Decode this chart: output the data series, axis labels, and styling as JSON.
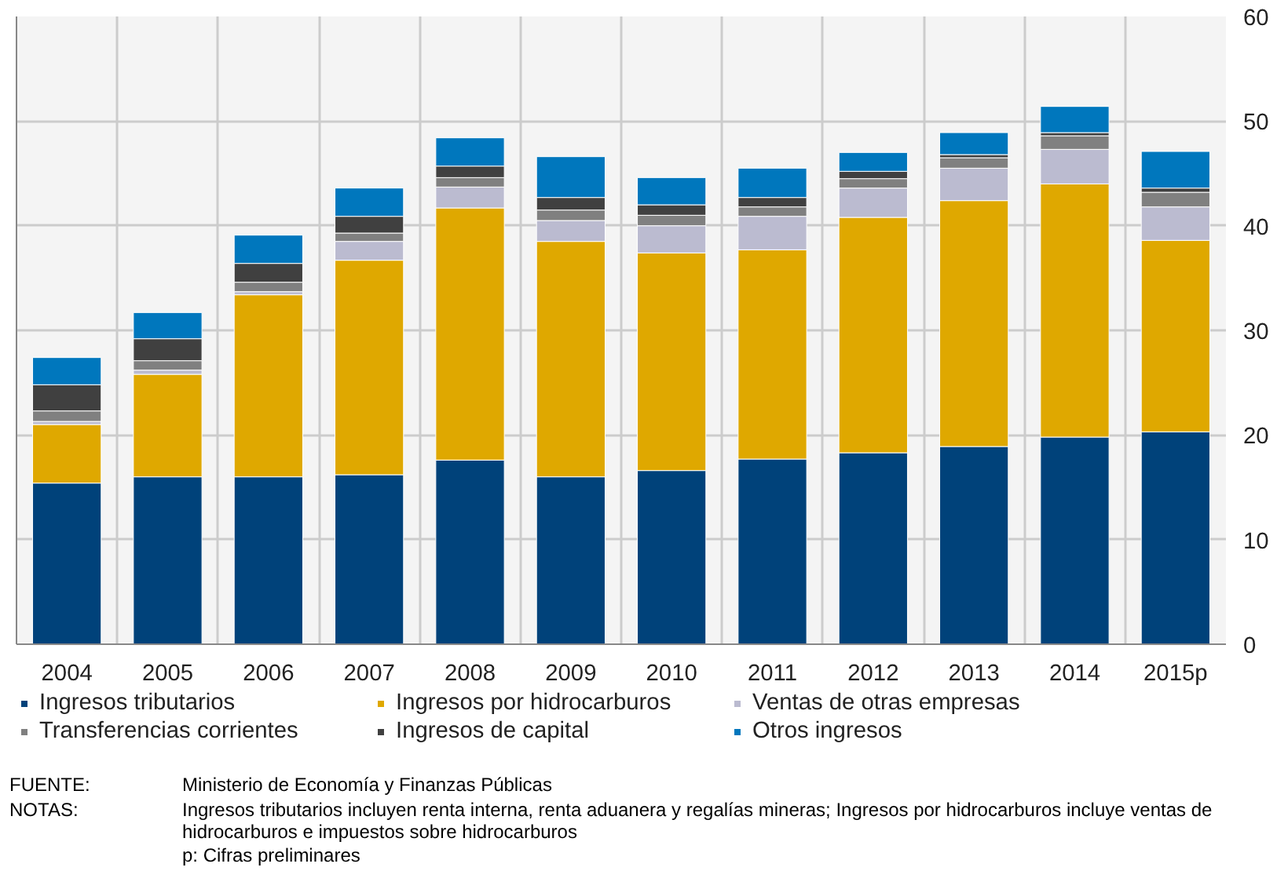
{
  "chart_data": {
    "type": "bar",
    "stacked": true,
    "categories": [
      "2004",
      "2005",
      "2006",
      "2007",
      "2008",
      "2009",
      "2010",
      "2011",
      "2012",
      "2013",
      "2014",
      "2015p"
    ],
    "series": [
      {
        "name": "Ingresos tributarios",
        "color": "#00427a",
        "values": [
          15.4,
          16.0,
          16.0,
          16.2,
          17.6,
          16.0,
          16.6,
          17.7,
          18.3,
          18.9,
          19.8,
          20.3
        ]
      },
      {
        "name": "Ingresos por hidrocarburos",
        "color": "#dfa800",
        "values": [
          5.6,
          9.8,
          17.4,
          20.5,
          24.1,
          22.5,
          20.8,
          20.0,
          22.5,
          23.5,
          24.2,
          18.3
        ]
      },
      {
        "name": "Ventas de otras empresas",
        "color": "#bbbbd0",
        "values": [
          0.3,
          0.4,
          0.3,
          1.8,
          2.0,
          2.0,
          2.6,
          3.2,
          2.8,
          3.1,
          3.3,
          3.2
        ]
      },
      {
        "name": "Transferencias corrientes",
        "color": "#808080",
        "values": [
          1.0,
          0.9,
          0.9,
          0.8,
          0.9,
          1.0,
          1.0,
          0.9,
          0.9,
          1.0,
          1.3,
          1.4
        ]
      },
      {
        "name": "Ingresos de capital",
        "color": "#404040",
        "values": [
          2.5,
          2.1,
          1.8,
          1.6,
          1.1,
          1.2,
          1.0,
          0.9,
          0.7,
          0.3,
          0.3,
          0.4
        ]
      },
      {
        "name": "Otros ingresos",
        "color": "#0077bd",
        "values": [
          2.6,
          2.5,
          2.7,
          2.7,
          2.7,
          3.9,
          2.6,
          2.8,
          1.8,
          2.1,
          2.5,
          3.5
        ]
      }
    ],
    "ylim": [
      0,
      60
    ],
    "yticks": [
      0,
      10,
      20,
      30,
      40,
      50,
      60
    ],
    "grid": true,
    "legend": "bottom",
    "annotations": [
      "FUENTE: Ministerio de Economía y Finanzas Públicas",
      "NOTAS: Ingresos tributarios incluyen renta interna, renta aduanera y regalías mineras; Ingresos por hidrocarburos incluye ventas de hidrocarburos e impuestos sobre hidrocarburos",
      "p: Cifras preliminares"
    ]
  }
}
